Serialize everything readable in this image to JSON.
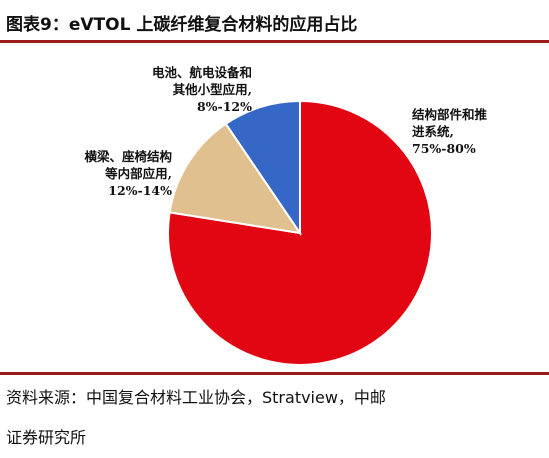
{
  "title": "图表9：eVTOL 上碳纤维复合材料的应用占比",
  "source": {
    "line1": "资料来源：中国复合材料工业协会，Stratview，中邮",
    "line2": "证券研究所"
  },
  "chart_data": {
    "type": "pie",
    "title": "图表9：eVTOL 上碳纤维复合材料的应用占比",
    "slices": [
      {
        "label_lines": [
          "结构部件和推",
          "进系统,"
        ],
        "range": "75%-80%",
        "value": 77.5,
        "color": "#e20613"
      },
      {
        "label_lines": [
          "横梁、座椅结构",
          "等内部应用,"
        ],
        "range": "12%-14%",
        "value": 13,
        "color": "#dfc08e"
      },
      {
        "label_lines": [
          "电池、航电设备和",
          "其他小型应用,"
        ],
        "range": "8%-12%",
        "value": 9.5,
        "color": "#3567c7"
      }
    ],
    "start_angle_deg": 0,
    "direction": "clockwise",
    "legend": "none"
  }
}
